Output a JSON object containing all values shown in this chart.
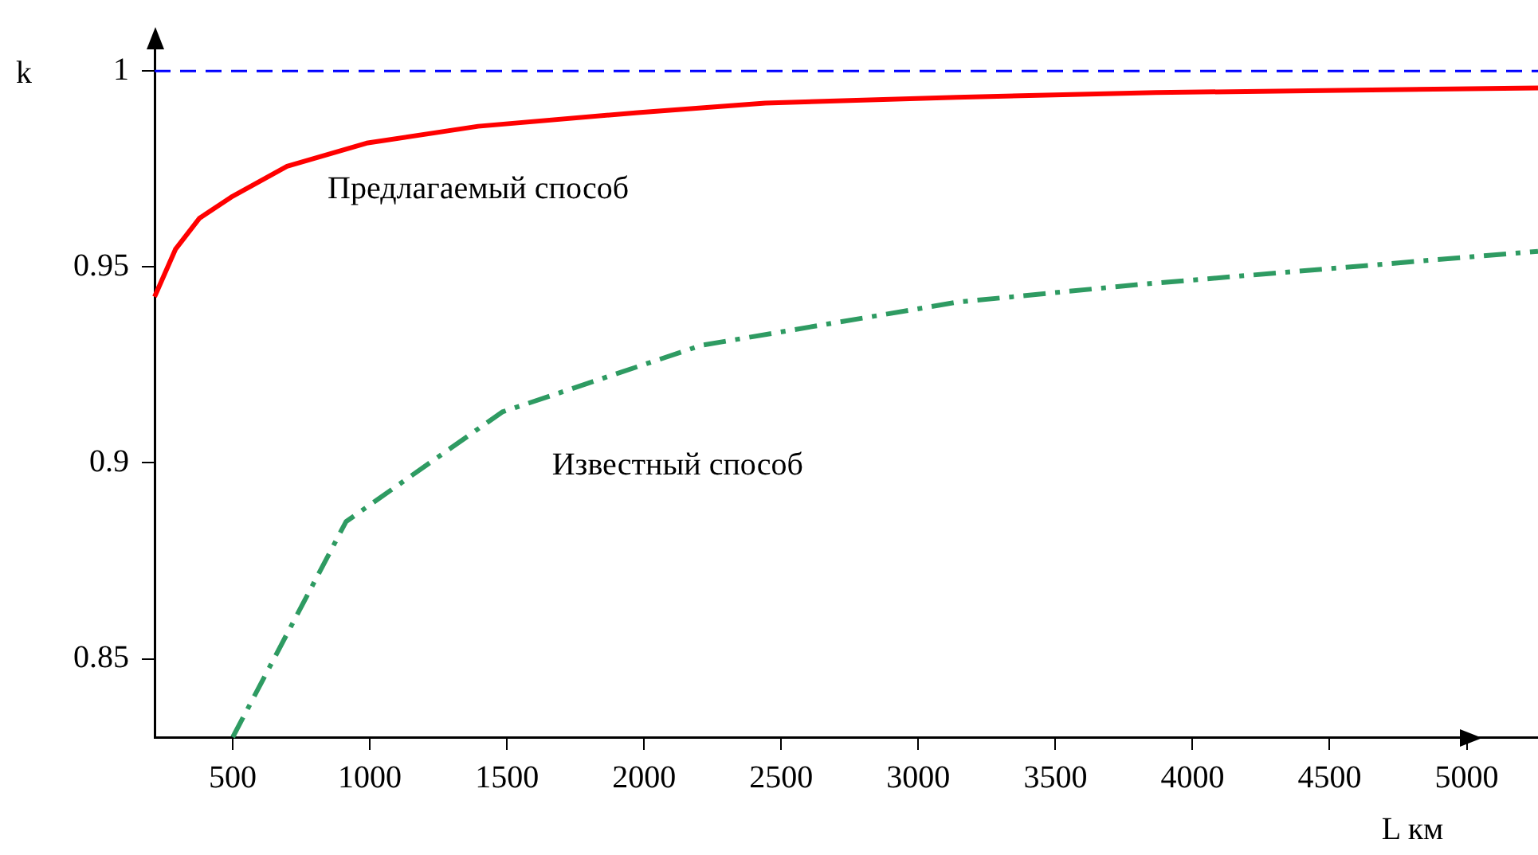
{
  "chart_data": {
    "type": "line",
    "xlabel": "L км",
    "ylabel": "k",
    "xlim": [
      215,
      5260
    ],
    "xticks": [
      500,
      1000,
      1500,
      2000,
      2500,
      3000,
      3500,
      4000,
      4500,
      5000
    ],
    "ylim": [
      0.83,
      1.01
    ],
    "yticks": [
      0.85,
      0.9,
      0.95,
      1
    ],
    "grid": false,
    "legend": false,
    "marker": "none",
    "series": [
      {
        "name": "Предлагаемый способ",
        "color": "#ff0000",
        "line_style": "solid",
        "x": [
          215,
          291,
          378,
          494,
          698,
          988,
          1395,
          1977,
          2442,
          3140,
          3867,
          5260
        ],
        "values": [
          0.9424,
          0.9545,
          0.9624,
          0.9678,
          0.9757,
          0.9816,
          0.9859,
          0.9894,
          0.9918,
          0.9933,
          0.9945,
          0.9957
        ]
      },
      {
        "name": "Известный способ",
        "color": "#2e9b62",
        "line_style": "dashed",
        "x": [
          500,
          913,
          1483,
          2209,
          3140,
          3800,
          5260
        ],
        "values": [
          0.83,
          0.885,
          0.913,
          0.93,
          0.941,
          0.9455,
          0.954
        ]
      }
    ],
    "ref_lines": [
      {
        "axis": "y",
        "value": 1,
        "color": "#0000ff",
        "line_style": "dashed"
      }
    ]
  }
}
